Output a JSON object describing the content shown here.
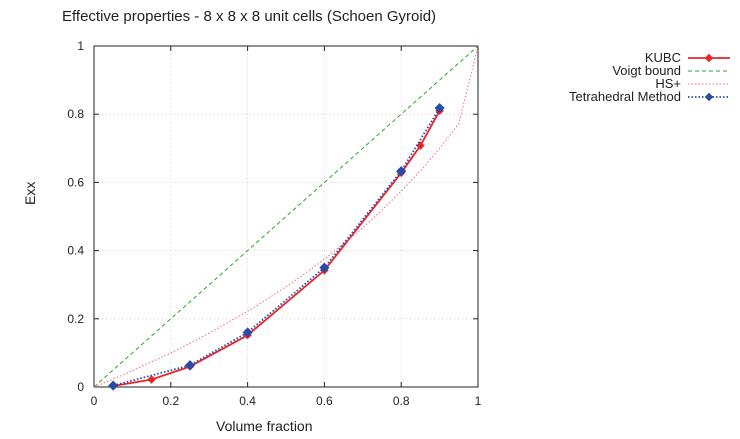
{
  "chart_data": {
    "type": "line",
    "title": "Effective properties - 8 x 8 x 8 unit cells (Schoen Gyroid)",
    "xlabel": "Volume fraction",
    "ylabel": "Exx",
    "xlim": [
      0,
      1
    ],
    "ylim": [
      0,
      1
    ],
    "xticks": [
      "0",
      "0.2",
      "0.4",
      "0.6",
      "0.8",
      "1"
    ],
    "yticks": [
      "0",
      "0.2",
      "0.4",
      "0.6",
      "0.8",
      "1"
    ],
    "grid": true,
    "legend_position": "top-right",
    "series": [
      {
        "name": "KUBC",
        "color": "#e8262a",
        "style": "solid",
        "marker": "diamond",
        "x": [
          0.05,
          0.15,
          0.25,
          0.4,
          0.6,
          0.8,
          0.85,
          0.9
        ],
        "y": [
          0.003,
          0.022,
          0.06,
          0.152,
          0.342,
          0.628,
          0.708,
          0.81
        ]
      },
      {
        "name": "Voigt bound",
        "color": "#2aa52a",
        "style": "dashed",
        "marker": "none",
        "x": [
          0,
          1
        ],
        "y": [
          0,
          1
        ]
      },
      {
        "name": "HS+",
        "color": "#f06a8a",
        "style": "dotted",
        "marker": "none",
        "x": [
          0,
          0.05,
          0.1,
          0.15,
          0.2,
          0.25,
          0.3,
          0.35,
          0.4,
          0.45,
          0.5,
          0.55,
          0.6,
          0.65,
          0.7,
          0.75,
          0.8,
          0.85,
          0.9,
          0.95,
          1
        ],
        "y": [
          0,
          0.023,
          0.048,
          0.074,
          0.1,
          0.128,
          0.158,
          0.19,
          0.222,
          0.257,
          0.294,
          0.333,
          0.375,
          0.42,
          0.467,
          0.519,
          0.574,
          0.634,
          0.7,
          0.772,
          1
        ]
      },
      {
        "name": "Tetrahedral Method",
        "color": "#2a4aa8",
        "style": "dotted",
        "marker": "diamond",
        "x": [
          0.05,
          0.25,
          0.4,
          0.6,
          0.8,
          0.9
        ],
        "y": [
          0.004,
          0.064,
          0.16,
          0.35,
          0.633,
          0.818
        ]
      }
    ]
  }
}
